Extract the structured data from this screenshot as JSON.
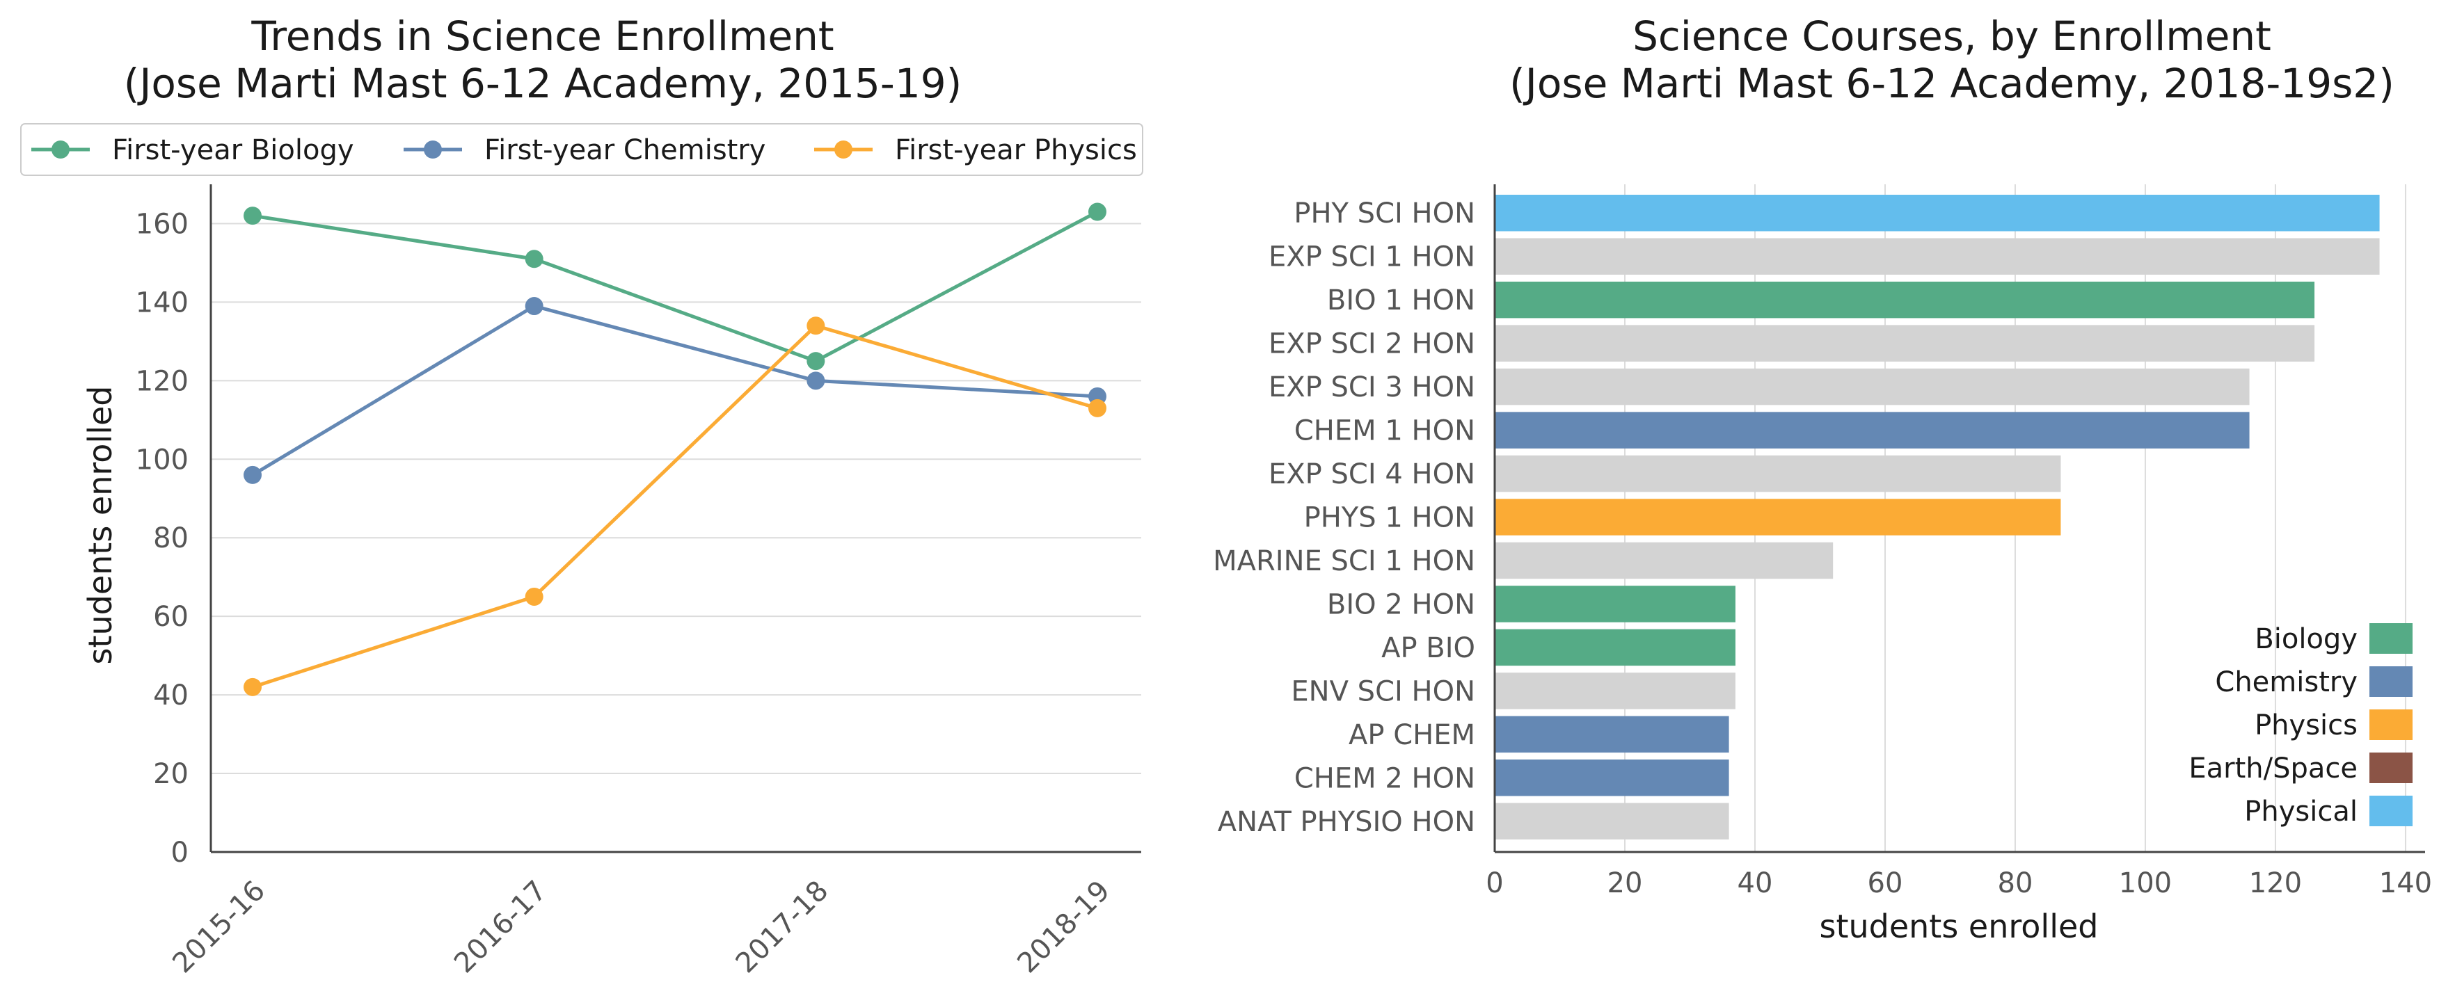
{
  "colors": {
    "Biology": "#55ab86",
    "Chemistry": "#6488b4",
    "Physics": "#fbab35",
    "Earth/Space": "#8b5446",
    "Physical": "#63bded",
    "Other": "#d3d3d3",
    "grid": "#dcdcdc",
    "axis": "#444444"
  },
  "chart_data": [
    {
      "type": "line",
      "title": "Trends in Science Enrollment\n(Jose Marti Mast 6-12 Academy, 2015-19)",
      "xlabel": "",
      "ylabel": "students enrolled",
      "categories": [
        "2015-16",
        "2016-17",
        "2017-18",
        "2018-19"
      ],
      "series": [
        {
          "name": "First-year Biology",
          "color_key": "Biology",
          "values": [
            162,
            151,
            125,
            163
          ]
        },
        {
          "name": "First-year Chemistry",
          "color_key": "Chemistry",
          "values": [
            96,
            139,
            120,
            116
          ]
        },
        {
          "name": "First-year Physics",
          "color_key": "Physics",
          "values": [
            42,
            65,
            134,
            113
          ]
        }
      ],
      "ylim": [
        0,
        170
      ],
      "yticks": [
        0,
        20,
        40,
        60,
        80,
        100,
        120,
        140,
        160
      ],
      "grid": "horizontal",
      "legend": "top"
    },
    {
      "type": "bar",
      "orientation": "horizontal",
      "title": "Science Courses, by Enrollment\n(Jose Marti Mast 6-12 Academy, 2018-19s2)",
      "xlabel": "students enrolled",
      "ylabel": "",
      "categories": [
        "PHY SCI HON",
        "EXP SCI 1 HON",
        "BIO 1 HON",
        "EXP SCI 2 HON",
        "EXP SCI 3 HON",
        "CHEM 1 HON",
        "EXP SCI 4 HON",
        "PHYS 1 HON",
        "MARINE SCI 1 HON",
        "BIO 2 HON",
        "AP BIO",
        "ENV SCI HON",
        "AP CHEM",
        "CHEM 2 HON",
        "ANAT PHYSIO HON"
      ],
      "values": [
        136,
        136,
        126,
        126,
        116,
        116,
        87,
        87,
        52,
        37,
        37,
        37,
        36,
        36,
        36
      ],
      "groups": [
        "Physical",
        "Other",
        "Biology",
        "Other",
        "Other",
        "Chemistry",
        "Other",
        "Physics",
        "Other",
        "Biology",
        "Biology",
        "Other",
        "Chemistry",
        "Chemistry",
        "Other"
      ],
      "xlim": [
        0,
        143
      ],
      "xticks": [
        0,
        20,
        40,
        60,
        80,
        100,
        120,
        140
      ],
      "grid": "vertical",
      "legend": {
        "placement": "bottom-right",
        "entries": [
          "Biology",
          "Chemistry",
          "Physics",
          "Earth/Space",
          "Physical"
        ]
      }
    }
  ]
}
